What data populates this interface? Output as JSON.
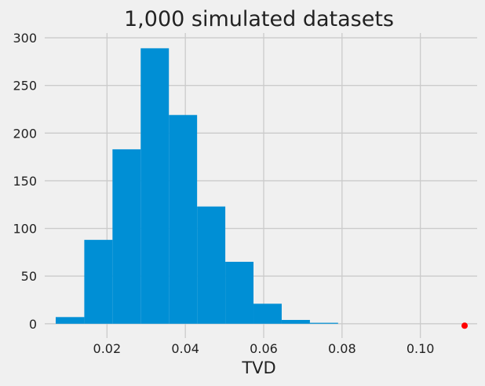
{
  "chart_data": {
    "type": "bar",
    "subtype": "histogram",
    "title": "1,000 simulated datasets",
    "xlabel": "TVD",
    "ylabel": "",
    "xlim": [
      0.0041,
      0.1145
    ],
    "ylim": [
      -15,
      305
    ],
    "xticks": [
      0.02,
      0.04,
      0.06,
      0.08,
      0.1
    ],
    "xtick_labels": [
      "0.02",
      "0.04",
      "0.06",
      "0.08",
      "0.10"
    ],
    "yticks": [
      0,
      50,
      100,
      150,
      200,
      250,
      300
    ],
    "ytick_labels": [
      "0",
      "50",
      "100",
      "150",
      "200",
      "250",
      "300"
    ],
    "grid": true,
    "bar_color": "#008fd5",
    "bins": [
      {
        "x0": 0.0069,
        "x1": 0.0142,
        "count": 7
      },
      {
        "x0": 0.0142,
        "x1": 0.0214,
        "count": 88
      },
      {
        "x0": 0.0214,
        "x1": 0.0286,
        "count": 183
      },
      {
        "x0": 0.0286,
        "x1": 0.0358,
        "count": 289
      },
      {
        "x0": 0.0358,
        "x1": 0.043,
        "count": 219
      },
      {
        "x0": 0.043,
        "x1": 0.0502,
        "count": 123
      },
      {
        "x0": 0.0502,
        "x1": 0.0574,
        "count": 65
      },
      {
        "x0": 0.0574,
        "x1": 0.0646,
        "count": 21
      },
      {
        "x0": 0.0646,
        "x1": 0.0718,
        "count": 4
      },
      {
        "x0": 0.0718,
        "x1": 0.079,
        "count": 1
      }
    ],
    "observed_point": {
      "x": 0.1113,
      "y": -2,
      "color": "#ff0000"
    }
  }
}
